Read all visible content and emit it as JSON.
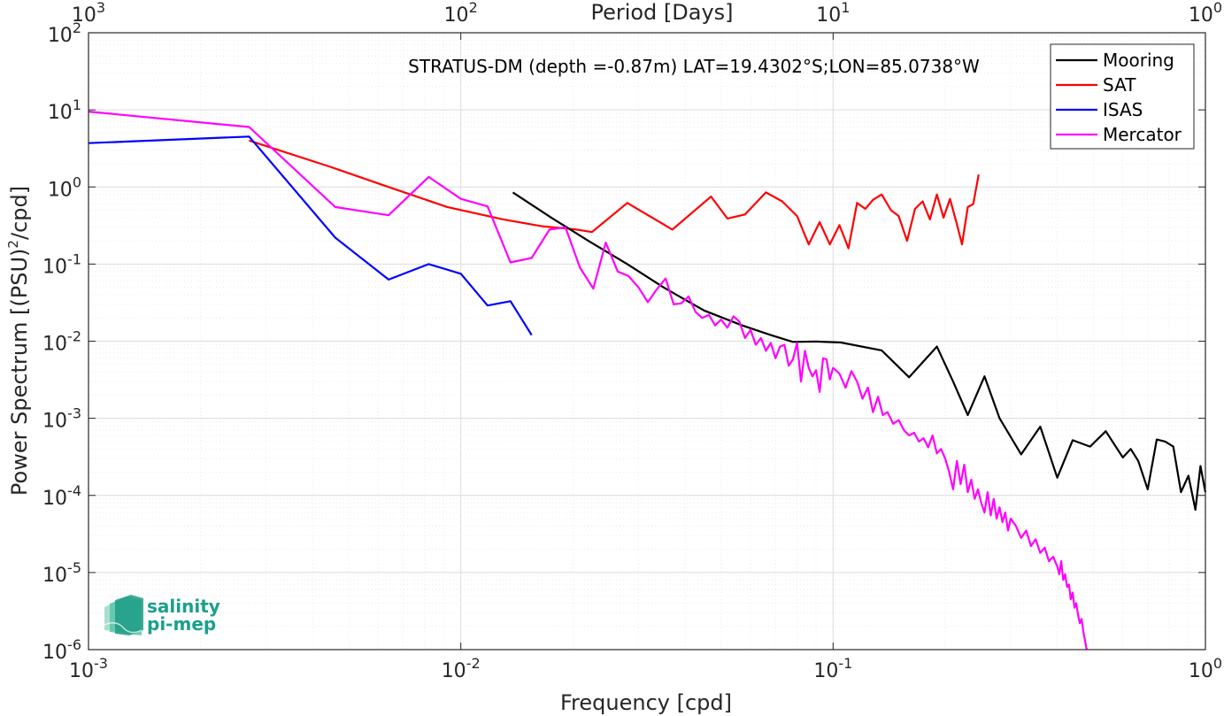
{
  "chart_data": {
    "type": "line",
    "title": "",
    "annotation": "STRATUS-DM (depth =-0.87m) LAT=19.4302°S;LON=85.0738°W",
    "xlabel": "Frequency [cpd]",
    "ylabel_main": "Power Spectrum [(PSU)",
    "ylabel_sup": "2",
    "ylabel_end": "/cpd]",
    "top_xlabel": "Period [Days]",
    "x_scale": "log",
    "y_scale": "log",
    "xlim": [
      0.001,
      1
    ],
    "ylim": [
      1e-06,
      100
    ],
    "grid": true,
    "legend_position": "top-right",
    "x_ticks": [
      {
        "value": 0.001,
        "base": "10",
        "exp": "-3"
      },
      {
        "value": 0.01,
        "base": "10",
        "exp": "-2"
      },
      {
        "value": 0.1,
        "base": "10",
        "exp": "-1"
      },
      {
        "value": 1,
        "base": "10",
        "exp": "0"
      }
    ],
    "top_ticks": [
      {
        "value": 0.001,
        "base": "10",
        "exp": "3"
      },
      {
        "value": 0.01,
        "base": "10",
        "exp": "2"
      },
      {
        "value": 0.1,
        "base": "10",
        "exp": "1"
      },
      {
        "value": 1,
        "base": "10",
        "exp": "0"
      }
    ],
    "y_ticks": [
      {
        "value": 100,
        "base": "10",
        "exp": "2"
      },
      {
        "value": 10,
        "base": "10",
        "exp": "1"
      },
      {
        "value": 1,
        "base": "10",
        "exp": "0"
      },
      {
        "value": 0.1,
        "base": "10",
        "exp": "-1"
      },
      {
        "value": 0.01,
        "base": "10",
        "exp": "-2"
      },
      {
        "value": 0.001,
        "base": "10",
        "exp": "-3"
      },
      {
        "value": 0.0001,
        "base": "10",
        "exp": "-4"
      },
      {
        "value": 1e-05,
        "base": "10",
        "exp": "-5"
      },
      {
        "value": 1e-06,
        "base": "10",
        "exp": "-6"
      }
    ],
    "series": [
      {
        "name": "Mooring",
        "color": "#000000",
        "x": [
          0.0138,
          0.0175,
          0.022,
          0.028,
          0.035,
          0.045,
          0.057,
          0.068,
          0.078,
          0.09,
          0.105,
          0.135,
          0.16,
          0.19,
          0.21,
          0.23,
          0.255,
          0.28,
          0.32,
          0.36,
          0.4,
          0.44,
          0.49,
          0.54,
          0.6,
          0.63,
          0.66,
          0.7,
          0.74,
          0.78,
          0.82,
          0.86,
          0.9,
          0.94,
          0.97,
          1.0
        ],
        "y": [
          0.85,
          0.4,
          0.2,
          0.1,
          0.05,
          0.025,
          0.016,
          0.012,
          0.0098,
          0.0099,
          0.0096,
          0.0076,
          0.0034,
          0.0085,
          0.003,
          0.0011,
          0.0035,
          0.001,
          0.00034,
          0.00078,
          0.00017,
          0.00052,
          0.00043,
          0.00068,
          0.00031,
          0.0004,
          0.00028,
          0.00012,
          0.00053,
          0.0005,
          0.00043,
          0.00011,
          0.00018,
          6.5e-05,
          0.00024,
          0.00011
        ]
      },
      {
        "name": "SAT",
        "color": "#ff0000",
        "x": [
          0.0027,
          0.0045,
          0.0064,
          0.0092,
          0.013,
          0.0165,
          0.0205,
          0.0225,
          0.028,
          0.037,
          0.047,
          0.052,
          0.058,
          0.066,
          0.073,
          0.08,
          0.086,
          0.092,
          0.098,
          0.104,
          0.11,
          0.116,
          0.122,
          0.128,
          0.135,
          0.143,
          0.15,
          0.158,
          0.166,
          0.174,
          0.182,
          0.19,
          0.198,
          0.206,
          0.214,
          0.222,
          0.23,
          0.238,
          0.246
        ],
        "y": [
          4.0,
          1.8,
          1.0,
          0.55,
          0.38,
          0.31,
          0.28,
          0.26,
          0.62,
          0.28,
          0.75,
          0.39,
          0.44,
          0.85,
          0.65,
          0.42,
          0.18,
          0.35,
          0.18,
          0.32,
          0.16,
          0.62,
          0.52,
          0.68,
          0.8,
          0.5,
          0.42,
          0.2,
          0.52,
          0.65,
          0.38,
          0.8,
          0.4,
          0.7,
          0.36,
          0.18,
          0.55,
          0.6,
          1.45
        ]
      },
      {
        "name": "ISAS",
        "color": "#0000ff",
        "x": [
          0.001,
          0.0027,
          0.0046,
          0.0064,
          0.0082,
          0.01,
          0.0118,
          0.0136,
          0.0155
        ],
        "y": [
          3.7,
          4.5,
          0.22,
          0.063,
          0.1,
          0.075,
          0.029,
          0.033,
          0.012
        ]
      },
      {
        "name": "Mercator",
        "color": "#ff00ff",
        "x": [
          0.001,
          0.0027,
          0.0046,
          0.0064,
          0.0082,
          0.01,
          0.0118,
          0.0136,
          0.0155,
          0.0173,
          0.0191,
          0.0209,
          0.0227,
          0.0245,
          0.0264,
          0.0282,
          0.03,
          0.0318,
          0.0336,
          0.0355,
          0.0373,
          0.0391,
          0.0409,
          0.0427,
          0.0445,
          0.0464,
          0.0482,
          0.05,
          0.052,
          0.054,
          0.056,
          0.058,
          0.06,
          0.062,
          0.064,
          0.066,
          0.068,
          0.07,
          0.072,
          0.074,
          0.076,
          0.078,
          0.08,
          0.082,
          0.084,
          0.086,
          0.088,
          0.09,
          0.092,
          0.094,
          0.096,
          0.098,
          0.1,
          0.104,
          0.108,
          0.112,
          0.116,
          0.12,
          0.124,
          0.128,
          0.132,
          0.136,
          0.14,
          0.145,
          0.15,
          0.155,
          0.16,
          0.165,
          0.17,
          0.175,
          0.18,
          0.185,
          0.19,
          0.195,
          0.2,
          0.205,
          0.21,
          0.215,
          0.22,
          0.225,
          0.23,
          0.235,
          0.24,
          0.245,
          0.25,
          0.255,
          0.26,
          0.265,
          0.27,
          0.275,
          0.28,
          0.285,
          0.29,
          0.295,
          0.3,
          0.31,
          0.32,
          0.33,
          0.34,
          0.35,
          0.36,
          0.37,
          0.38,
          0.39,
          0.4,
          0.405,
          0.41,
          0.415,
          0.42,
          0.425,
          0.43,
          0.435,
          0.44,
          0.445,
          0.45,
          0.455,
          0.46,
          0.465,
          0.47,
          0.475,
          0.48
        ],
        "y": [
          9.5,
          6.0,
          0.55,
          0.43,
          1.35,
          0.7,
          0.56,
          0.105,
          0.12,
          0.28,
          0.3,
          0.09,
          0.048,
          0.19,
          0.08,
          0.07,
          0.05,
          0.032,
          0.047,
          0.065,
          0.03,
          0.031,
          0.038,
          0.024,
          0.02,
          0.022,
          0.016,
          0.019,
          0.015,
          0.021,
          0.018,
          0.011,
          0.014,
          0.009,
          0.011,
          0.0075,
          0.0095,
          0.006,
          0.0085,
          0.009,
          0.0048,
          0.0058,
          0.0095,
          0.003,
          0.0075,
          0.0045,
          0.0035,
          0.0042,
          0.0022,
          0.006,
          0.0058,
          0.0032,
          0.0045,
          0.0038,
          0.0025,
          0.0041,
          0.003,
          0.0018,
          0.0025,
          0.0012,
          0.0019,
          0.0011,
          0.0012,
          0.00085,
          0.00095,
          0.0007,
          0.0006,
          0.00065,
          0.0005,
          0.00055,
          0.00042,
          0.0006,
          0.00035,
          0.0004,
          0.0003,
          0.0002,
          0.00012,
          0.00028,
          0.00014,
          0.00025,
          0.00011,
          0.00016,
          9e-05,
          0.00012,
          8e-05,
          6e-05,
          0.00011,
          5.5e-05,
          9e-05,
          5e-05,
          7e-05,
          4.5e-05,
          6e-05,
          3.5e-05,
          5e-05,
          4e-05,
          2.8e-05,
          3.5e-05,
          2.2e-05,
          2.7e-05,
          1.8e-05,
          2.1e-05,
          1.4e-05,
          1.6e-05,
          1.2e-05,
          9.5e-06,
          1.4e-05,
          8e-06,
          9.5e-06,
          6.5e-06,
          7e-06,
          4.5e-06,
          5.5e-06,
          3.5e-06,
          4e-06,
          2.8e-06,
          2.2e-06,
          2.5e-06,
          1.7e-06,
          1.3e-06,
          1e-06
        ]
      }
    ]
  },
  "logo": {
    "line1": "salinity",
    "line2": "pi-mep"
  }
}
